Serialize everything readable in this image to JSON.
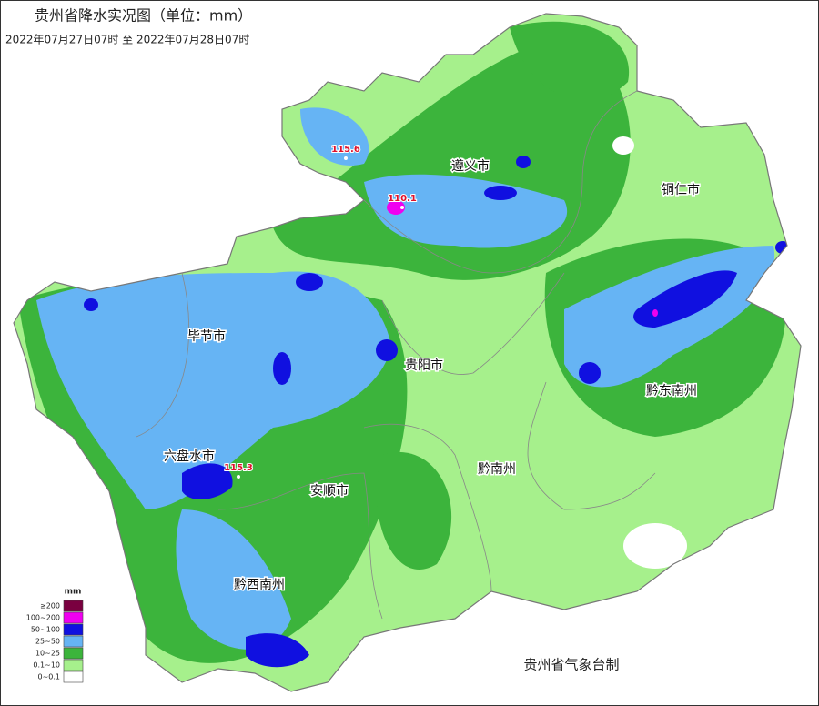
{
  "header": {
    "title": "贵州省降水实况图（单位：mm）",
    "subtitle": "2022年07月27日07时  至  2022年07月28日07时"
  },
  "cities": [
    {
      "label": "遵义市"
    },
    {
      "label": "铜仁市"
    },
    {
      "label": "毕节市"
    },
    {
      "label": "贵阳市"
    },
    {
      "label": "黔东南州"
    },
    {
      "label": "六盘水市"
    },
    {
      "label": "安顺市"
    },
    {
      "label": "黔南州"
    },
    {
      "label": "黔西南州"
    }
  ],
  "annotations": [
    {
      "value": 115.6
    },
    {
      "value": 110.1
    },
    {
      "value": 115.3
    }
  ],
  "legend": {
    "unit": "mm",
    "items": [
      {
        "label": "≥200",
        "color": "#7a0040"
      },
      {
        "label": "100~200",
        "color": "#f000f0"
      },
      {
        "label": "50~100",
        "color": "#1010e0"
      },
      {
        "label": "25~50",
        "color": "#66b4f4"
      },
      {
        "label": "10~25",
        "color": "#3cb43c"
      },
      {
        "label": "0.1~10",
        "color": "#a6f08c"
      },
      {
        "label": "0~0.1",
        "color": "#ffffff"
      }
    ]
  },
  "credit": "贵州省气象台制"
}
